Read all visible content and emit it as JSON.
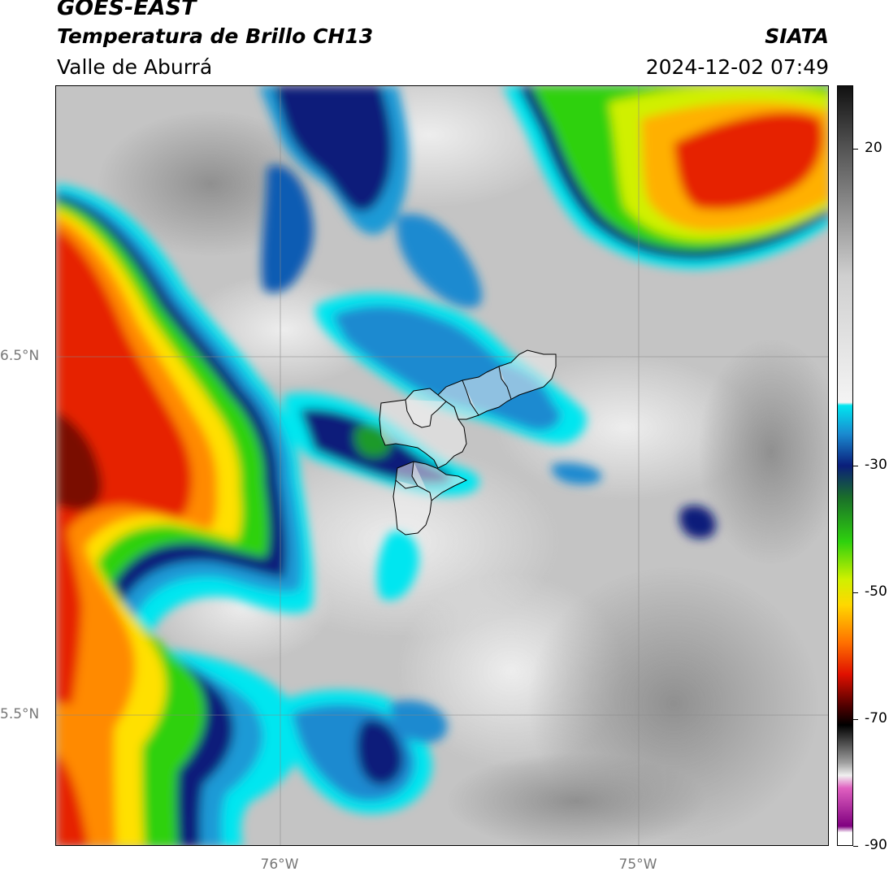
{
  "header": {
    "satellite": "GOES-EAST",
    "product": "Temperatura de Brillo CH13",
    "region": "Valle de Aburrá",
    "agency": "SIATA",
    "datetime": "2024-12-02 07:49"
  },
  "map": {
    "lat_labels": [
      "6.5°N",
      "5.5°N"
    ],
    "lon_labels": [
      "76°W",
      "75°W"
    ],
    "colors": {
      "background": "#c8c8c8",
      "cyan": "#00e6f0",
      "blue_light": "#1a9ad6",
      "blue_mid": "#0a5cb3",
      "navy": "#0a1e7a",
      "green_dark": "#1a6e2a",
      "green": "#2ed10e",
      "yellow_green": "#b8f000",
      "yellow": "#ffe000",
      "orange": "#ff8a00",
      "red": "#e62000",
      "dark_red": "#7a0a00"
    }
  },
  "colorbar": {
    "ticks": [
      "20",
      "-30",
      "-50",
      "-70",
      "-90"
    ],
    "range": [
      -90,
      30
    ],
    "stops": [
      {
        "value": 30,
        "color": "#111111"
      },
      {
        "value": 20,
        "color": "#555555"
      },
      {
        "value": 0,
        "color": "#cfcfcf"
      },
      {
        "value": -20,
        "color": "#f4f4f4"
      },
      {
        "value": -20.5,
        "color": "#00e6f0"
      },
      {
        "value": -25,
        "color": "#1a8ad0"
      },
      {
        "value": -30,
        "color": "#0a1e7a"
      },
      {
        "value": -35,
        "color": "#1a6e2a"
      },
      {
        "value": -42,
        "color": "#2ed10e"
      },
      {
        "value": -48,
        "color": "#d0f000"
      },
      {
        "value": -52,
        "color": "#ffd800"
      },
      {
        "value": -58,
        "color": "#ff7000"
      },
      {
        "value": -63,
        "color": "#e01000"
      },
      {
        "value": -68,
        "color": "#500000"
      },
      {
        "value": -71,
        "color": "#000000"
      },
      {
        "value": -77,
        "color": "#a0a0a0"
      },
      {
        "value": -79,
        "color": "#f0f0f0"
      },
      {
        "value": -81,
        "color": "#e060c0"
      },
      {
        "value": -87,
        "color": "#800080"
      },
      {
        "value": -88,
        "color": "#ffffff"
      },
      {
        "value": -90,
        "color": "#ffffff"
      }
    ]
  }
}
